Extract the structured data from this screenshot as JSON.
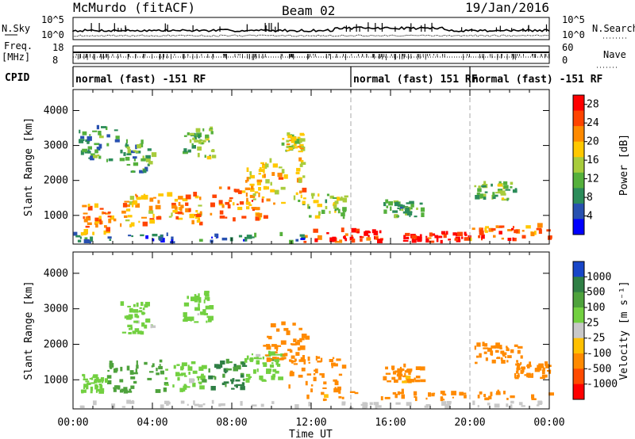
{
  "header": {
    "station": "McMurdo (fitACF)",
    "beam": "Beam 02",
    "date": "19/Jan/2016"
  },
  "summary_panels": {
    "nsky_label": "N.Sky",
    "nsearch_label": "N.Search",
    "freq_label_1": "Freq.",
    "freq_label_2": "[MHz]",
    "nave_label": "Nave",
    "cpid_label": "CPID",
    "nsky_ticks": [
      "10^5",
      "10^0"
    ],
    "nsearch_ticks": [
      "10^5",
      "10^0"
    ],
    "freq_ticks": [
      "18",
      "8"
    ],
    "nave_ticks": [
      "60",
      "0"
    ]
  },
  "cpid_segments": [
    {
      "label": "normal (fast) -151 RF",
      "start_hour": 0
    },
    {
      "label": "normal (fast) 151 RF",
      "start_hour": 14
    },
    {
      "label": "normal (fast) -151 RF",
      "start_hour": 20
    }
  ],
  "chart_data": [
    {
      "type": "heatmap",
      "title": "",
      "xlabel": "Time UT",
      "ylabel": "Slant Range [km]",
      "x_ticks": [
        "00:00",
        "04:00",
        "08:00",
        "12:00",
        "16:00",
        "20:00",
        "00:00"
      ],
      "xlim_hours": [
        0,
        24
      ],
      "y_ticks": [
        1000,
        2000,
        3000,
        4000
      ],
      "ylim": [
        180,
        4600
      ],
      "colorbar": {
        "label": "Power [dB]",
        "ticks": [
          "4",
          "8",
          "12",
          "16",
          "20",
          "24",
          "28"
        ],
        "range": [
          0,
          30
        ],
        "colors": [
          "#0000ff",
          "#2851b0",
          "#2c8c5a",
          "#55b03c",
          "#a8cc3c",
          "#ffc800",
          "#ff8a00",
          "#ff4400",
          "#ff0000"
        ]
      },
      "segment_boundaries_hours": [
        14,
        20
      ],
      "regions": [
        {
          "t0": 0.3,
          "t1": 1.9,
          "r0": 420,
          "r1": 1250,
          "value": 22
        },
        {
          "t0": 1.9,
          "t1": 4.3,
          "r0": 650,
          "r1": 1600,
          "value": 20
        },
        {
          "t0": 4.6,
          "t1": 6.4,
          "r0": 700,
          "r1": 1550,
          "value": 21
        },
        {
          "t0": 6.8,
          "t1": 9.6,
          "r0": 780,
          "r1": 1750,
          "value": 22
        },
        {
          "t0": 8.6,
          "t1": 11.6,
          "r0": 1300,
          "r1": 2550,
          "value": 19
        },
        {
          "t0": 10.5,
          "t1": 11.5,
          "r0": 2800,
          "r1": 3300,
          "value": 17
        },
        {
          "t0": 2.3,
          "t1": 4.0,
          "r0": 2200,
          "r1": 3100,
          "value": 11
        },
        {
          "t0": 5.5,
          "t1": 7.0,
          "r0": 2600,
          "r1": 3450,
          "value": 12
        },
        {
          "t0": 0.2,
          "t1": 2.2,
          "r0": 2500,
          "r1": 3500,
          "value": 9
        },
        {
          "t0": 11.3,
          "t1": 13.8,
          "r0": 900,
          "r1": 1600,
          "value": 14
        },
        {
          "t0": 11.6,
          "t1": 15.6,
          "r0": 200,
          "r1": 520,
          "value": 27
        },
        {
          "t0": 16.6,
          "t1": 19.9,
          "r0": 200,
          "r1": 480,
          "value": 27
        },
        {
          "t0": 20.0,
          "t1": 24.0,
          "r0": 250,
          "r1": 650,
          "value": 23
        },
        {
          "t0": 15.6,
          "t1": 17.6,
          "r0": 900,
          "r1": 1350,
          "value": 11
        },
        {
          "t0": 20.2,
          "t1": 22.3,
          "r0": 1400,
          "r1": 1900,
          "value": 12
        },
        {
          "t0": 0.0,
          "t1": 11.5,
          "r0": 180,
          "r1": 420,
          "value": 6
        }
      ]
    },
    {
      "type": "heatmap",
      "title": "",
      "xlabel": "Time UT",
      "ylabel": "Slant Range [km]",
      "x_ticks": [
        "00:00",
        "04:00",
        "08:00",
        "12:00",
        "16:00",
        "20:00",
        "00:00"
      ],
      "xlim_hours": [
        0,
        24
      ],
      "y_ticks": [
        1000,
        2000,
        3000,
        4000
      ],
      "ylim": [
        180,
        4600
      ],
      "colorbar": {
        "label": "Velocity [m s⁻¹]",
        "ticks": [
          "1000",
          "500",
          "100",
          "25",
          "-25",
          "-100",
          "-500",
          "-1000"
        ],
        "colors": [
          "#1846c8",
          "#2f7f45",
          "#4ea23c",
          "#72d040",
          "#c8c8c8",
          "#ffc000",
          "#ff8a00",
          "#ff4a00",
          "#ff0000"
        ]
      },
      "segment_boundaries_hours": [
        14,
        20
      ],
      "regions": [
        {
          "t0": 1.6,
          "t1": 4.6,
          "r0": 600,
          "r1": 1500,
          "value": 300
        },
        {
          "t0": 0.3,
          "t1": 1.6,
          "r0": 600,
          "r1": 1100,
          "value": 60
        },
        {
          "t0": 4.6,
          "t1": 6.6,
          "r0": 650,
          "r1": 1450,
          "value": 60
        },
        {
          "t0": 6.8,
          "t1": 8.6,
          "r0": 700,
          "r1": 1500,
          "value": 600
        },
        {
          "t0": 2.3,
          "t1": 4.0,
          "r0": 2200,
          "r1": 3100,
          "value": 60
        },
        {
          "t0": 5.5,
          "t1": 7.0,
          "r0": 2600,
          "r1": 3450,
          "value": 60
        },
        {
          "t0": 8.6,
          "t1": 10.5,
          "r0": 900,
          "r1": 1700,
          "value": 60
        },
        {
          "t0": 9.4,
          "t1": 11.8,
          "r0": 1400,
          "r1": 2550,
          "value": -300
        },
        {
          "t0": 10.8,
          "t1": 13.6,
          "r0": 700,
          "r1": 1600,
          "value": -300
        },
        {
          "t0": 11.6,
          "t1": 24.0,
          "r0": 400,
          "r1": 650,
          "value": -200
        },
        {
          "t0": 15.6,
          "t1": 17.6,
          "r0": 900,
          "r1": 1350,
          "value": -200
        },
        {
          "t0": 20.2,
          "t1": 22.6,
          "r0": 1400,
          "r1": 2000,
          "value": -200
        },
        {
          "t0": 22.2,
          "t1": 24.0,
          "r0": 1000,
          "r1": 1400,
          "value": -300
        },
        {
          "t0": 0.0,
          "t1": 24.0,
          "r0": 180,
          "r1": 330,
          "value": 0
        }
      ]
    }
  ]
}
